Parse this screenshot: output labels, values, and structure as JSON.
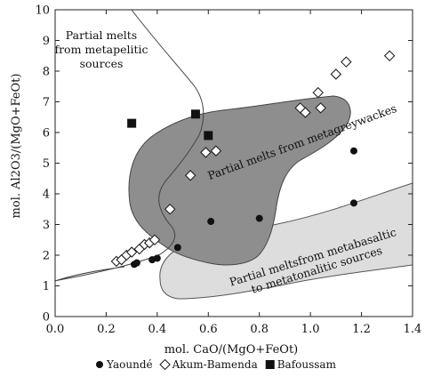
{
  "chart_data": {
    "type": "scatter",
    "xlabel": "mol. CaO/(MgO+FeOt)",
    "ylabel": "mol. Al2O3/(MgO+FeOt)",
    "xlim": [
      0,
      1.4
    ],
    "ylim": [
      0,
      10
    ],
    "x_ticks": [
      "0.0",
      "0.2",
      "0.4",
      "0.6",
      "0.8",
      "1.0",
      "1.2",
      "1.4"
    ],
    "y_ticks": [
      "0",
      "1",
      "2",
      "3",
      "4",
      "5",
      "6",
      "7",
      "8",
      "9",
      "10"
    ],
    "grid": false,
    "legend_position": "bottom",
    "regions": [
      {
        "name": "metapelitic",
        "label_lines": [
          "Partial melts",
          "from metapelitic",
          "sources"
        ]
      },
      {
        "name": "metagreywackes",
        "label_lines": [
          "Partial melts from metagreywackes"
        ]
      },
      {
        "name": "metabasaltic",
        "label_lines": [
          "Partial meltsfrom metabasaltic",
          "to metatonalitic sources"
        ]
      }
    ],
    "series": [
      {
        "name": "Yaoundé",
        "marker": "circle",
        "points": [
          [
            0.31,
            1.7
          ],
          [
            0.32,
            1.75
          ],
          [
            0.38,
            1.85
          ],
          [
            0.4,
            1.9
          ],
          [
            0.48,
            2.25
          ],
          [
            0.61,
            3.1
          ],
          [
            0.8,
            3.2
          ],
          [
            1.17,
            3.7
          ],
          [
            1.17,
            5.4
          ]
        ]
      },
      {
        "name": "Akum-Bamenda",
        "marker": "diamond",
        "points": [
          [
            0.24,
            1.8
          ],
          [
            0.26,
            1.85
          ],
          [
            0.28,
            2.0
          ],
          [
            0.3,
            2.1
          ],
          [
            0.33,
            2.2
          ],
          [
            0.35,
            2.35
          ],
          [
            0.37,
            2.4
          ],
          [
            0.39,
            2.5
          ],
          [
            0.45,
            3.5
          ],
          [
            0.53,
            4.6
          ],
          [
            0.59,
            5.35
          ],
          [
            0.63,
            5.4
          ],
          [
            0.96,
            6.8
          ],
          [
            0.98,
            6.65
          ],
          [
            1.03,
            7.3
          ],
          [
            1.04,
            6.8
          ],
          [
            1.1,
            7.9
          ],
          [
            1.14,
            8.3
          ],
          [
            1.31,
            8.5
          ]
        ]
      },
      {
        "name": "Bafoussam",
        "marker": "square",
        "points": [
          [
            0.3,
            6.3
          ],
          [
            0.55,
            6.6
          ],
          [
            0.6,
            5.9
          ]
        ]
      }
    ]
  }
}
